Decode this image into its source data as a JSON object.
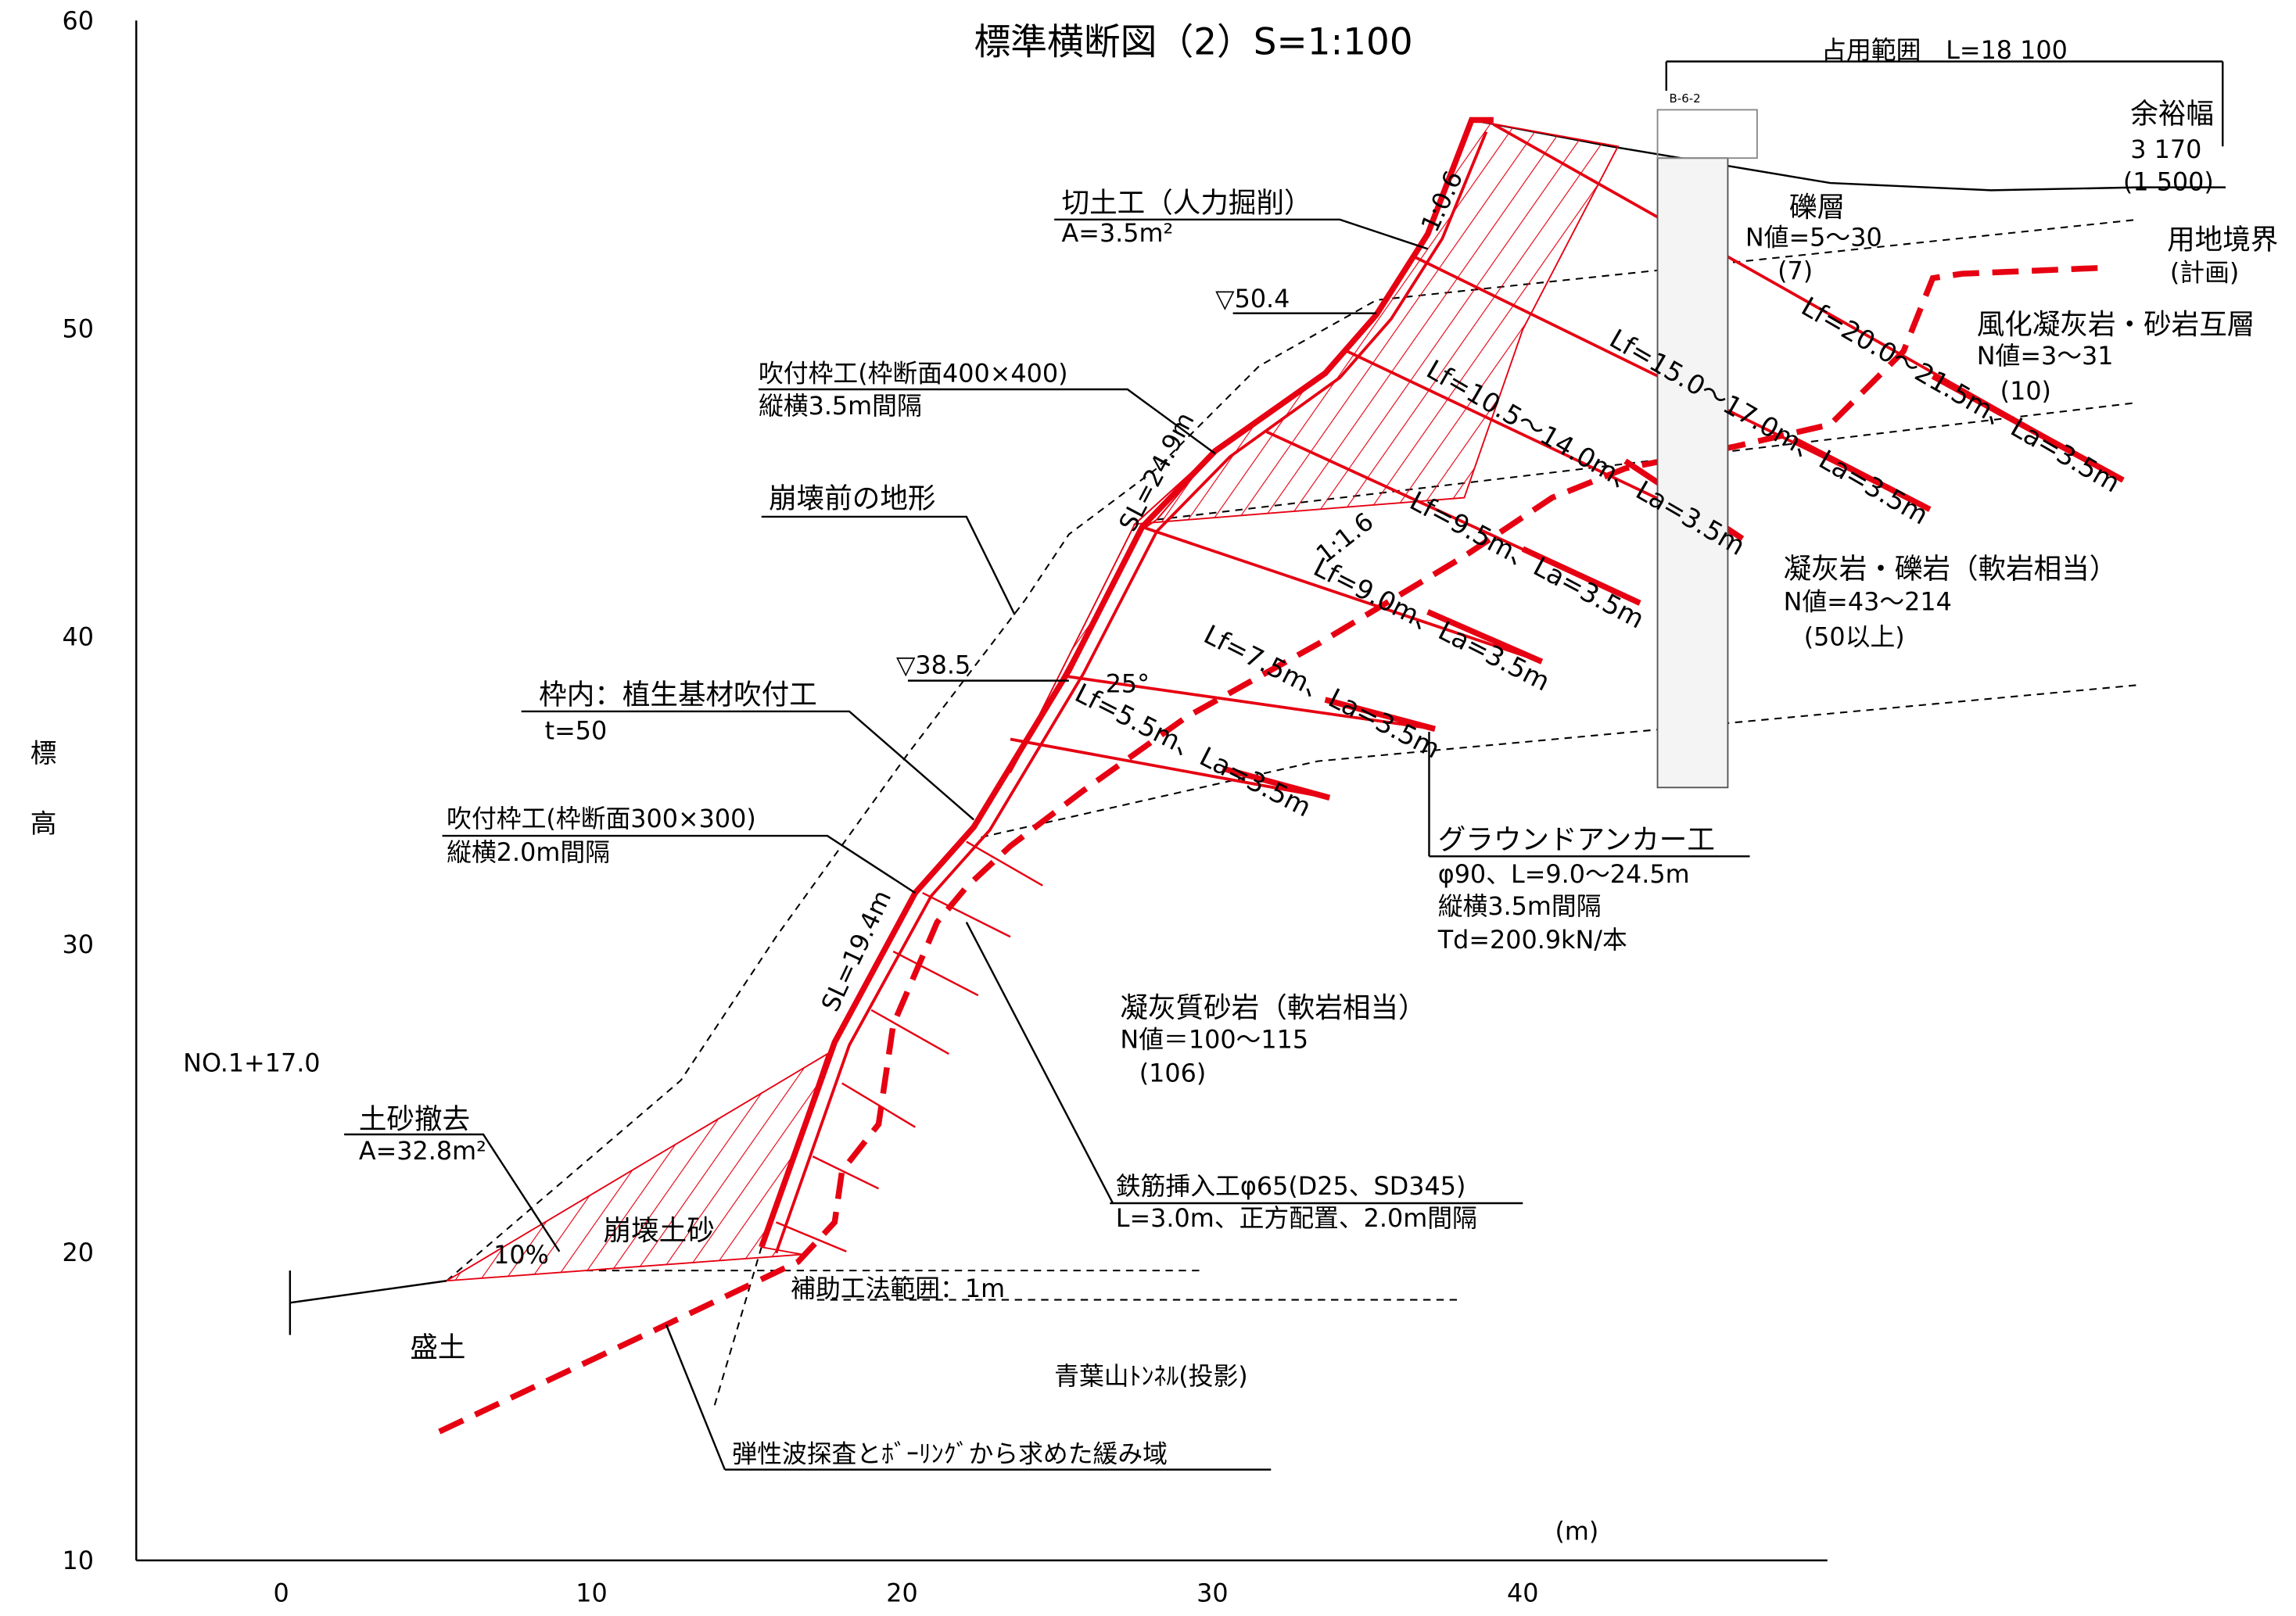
{
  "title": "標準横断図（2）S=1:100",
  "axes": {
    "xticks": [
      0,
      10,
      20,
      30,
      40
    ],
    "yticks": [
      10,
      20,
      30,
      40,
      50,
      60
    ],
    "y_label": "標高",
    "x_unit": "(m)"
  },
  "annotations": [
    "占用範囲　L=18 100",
    "余裕幅",
    "3 170",
    "(1 500)",
    "用地境界",
    "(計画)",
    "礫層",
    "N値=5～30",
    "(7)",
    "風化凝灰岩・砂岩互層",
    "N値=3～31",
    "(10)",
    "凝灰岩・礫岩（軟岩相当）",
    "N値=43～214",
    "(50以上)",
    "切土工（人力掘削）",
    "A=3.5m²",
    "▽50.4",
    "吹付枠工(枠断面400×400)",
    "縦横3.5m間隔",
    "崩壊前の地形",
    "▽38.5",
    "枠内：植生基材吹付工",
    "t=50",
    "吹付枠工(枠断面300×300)",
    "縦横2.0m間隔",
    "NO.1+17.0",
    "土砂撤去",
    "A=32.8m²",
    "10%",
    "崩壊土砂",
    "盛土",
    "補助工法範囲：1m",
    "青葉山ﾄﾝﾈﾙ(投影)",
    "弾性波探査とﾎﾞｰﾘﾝｸﾞから求めた緩み域",
    "凝灰質砂岩（軟岩相当）",
    "N値＝100～115",
    "(106)",
    "鉄筋挿入工φ65(D25、SD345)",
    "L=3.0m、正方配置、2.0m間隔",
    "グラウンドアンカー工",
    "φ90、L=9.0～24.5m",
    "縦横3.5m間隔",
    "Td=200.9kN/本",
    "SL=24.9m",
    "SL=19.4m",
    "1:0.6",
    "1:1.6",
    "25°",
    "Lf=20.0～21.5m、La=3.5m",
    "Lf=15.0～17.0m、La=3.5m",
    "Lf=10.5～14.0m、La=3.5m",
    "Lf=9.5m、La=3.5m",
    "Lf=9.0m、La=3.5m",
    "Lf=7.5m、La=3.5m",
    "Lf=5.5m、La=3.5m",
    "B-6-2"
  ]
}
